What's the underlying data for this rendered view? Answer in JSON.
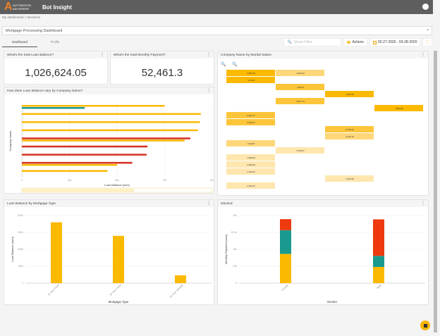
{
  "header": {
    "logo_text": "AUTOMATION ANYWHERE",
    "app_title": "Bot Insight",
    "user_icon": "user-circle-icon",
    "bg": "#5e5e5e"
  },
  "breadcrumb": [
    "My dashboards",
    ">",
    "Business"
  ],
  "dashboard_select": {
    "value": "Mortgage Processing Dashboard"
  },
  "tabs": [
    {
      "label": "Dashboard",
      "active": true
    },
    {
      "label": "Profile",
      "active": false
    }
  ],
  "toolbar": {
    "filter_placeholder": "Smart Filter",
    "actions_label": "Actions",
    "date_range": "02-27-2020 - 03-28-2020"
  },
  "kpis": [
    {
      "title": "What's the total Loan Balance?",
      "value": "1,026,624.05"
    },
    {
      "title": "What's the total Monthly Payment?",
      "value": "52,461.3"
    }
  ],
  "colors": {
    "yellow": "#fbb900",
    "red": "#d7301f",
    "teal": "#1a9a8f",
    "orange_red": "#ee3a0e"
  },
  "chart_data": [
    {
      "type": "bar",
      "orientation": "horizontal",
      "title": "How does Loan Balance vary by Company Name?",
      "xlabel": "Loan Balance (sum)",
      "ylabel": "Company Name",
      "xlim": [
        0,
        100000
      ],
      "xticks": [
        "0",
        "25k",
        "50k",
        "75k",
        "100k"
      ],
      "rows": [
        [
          {
            "v": 75000,
            "c": "yellow"
          },
          {
            "v": 33000,
            "c": "teal"
          }
        ],
        [
          {
            "v": 94000,
            "c": "yellow"
          }
        ],
        [
          {
            "v": 93500,
            "c": "yellow"
          }
        ],
        [
          {
            "v": 92500,
            "c": "yellow"
          }
        ],
        [
          {
            "v": 88500,
            "c": "red"
          },
          {
            "v": 85500,
            "c": "yellow"
          }
        ],
        [
          {
            "v": 66000,
            "c": "red"
          }
        ],
        [
          {
            "v": 65500,
            "c": "red"
          }
        ],
        [
          {
            "v": 58000,
            "c": "red"
          },
          {
            "v": 50000,
            "c": "yellow"
          }
        ],
        [
          {
            "v": 45000,
            "c": "yellow"
          }
        ]
      ]
    },
    {
      "type": "heatmap",
      "title": "Company Name by Marital Status",
      "columns": 4,
      "cells": [
        [
          0,
          0,
          "4,932.79"
        ],
        [
          0,
          1,
          "2,629.22"
        ],
        [
          1,
          0,
          "4,714.9"
        ],
        [
          2,
          1,
          "4,030.3"
        ],
        [
          3,
          2,
          "4,483.76"
        ],
        [
          4,
          1,
          "3,807.74"
        ],
        [
          5,
          3,
          "7,860.99"
        ],
        [
          6,
          0,
          "3,464.77"
        ],
        [
          7,
          0,
          "3,326.57"
        ],
        [
          8,
          2,
          "3,275.32"
        ],
        [
          9,
          2,
          "2,165.79"
        ],
        [
          10,
          0,
          "2,344.8"
        ],
        [
          11,
          1,
          "1,755.57"
        ],
        [
          12,
          0,
          "1,528.64"
        ],
        [
          13,
          0,
          "1,466.28"
        ],
        [
          14,
          0,
          "1,294.22"
        ],
        [
          15,
          2,
          "1,160.99"
        ],
        [
          16,
          0,
          "1,196.76"
        ]
      ]
    },
    {
      "type": "bar",
      "title": "Loan Balance by Mortgage Type",
      "xlabel": "Mortgage Type",
      "ylabel": "Loan Balance (sum)",
      "ylim": [
        0,
        600000
      ],
      "yticks": [
        "0",
        "150k",
        "300k",
        "450k",
        "600k"
      ],
      "categories": [
        "15 Year Fixed",
        "30 Year Fixed",
        "30 Year Variable"
      ],
      "values": [
        540000,
        420000,
        70000
      ]
    },
    {
      "type": "bar",
      "stacked": true,
      "title": "stacked",
      "xlabel": "Gender",
      "ylabel": "Monthly Payment (sum)",
      "ylim": [
        0,
        30000
      ],
      "yticks": [
        "0",
        "7.5k",
        "15k",
        "22.5k",
        "30k"
      ],
      "categories": [
        "Female",
        "Male"
      ],
      "series": [
        {
          "color": "yellow",
          "values": [
            13000,
            7200
          ]
        },
        {
          "color": "teal",
          "values": [
            10500,
            4900
          ]
        },
        {
          "color": "orange_red",
          "values": [
            4900,
            16200
          ]
        }
      ]
    }
  ]
}
